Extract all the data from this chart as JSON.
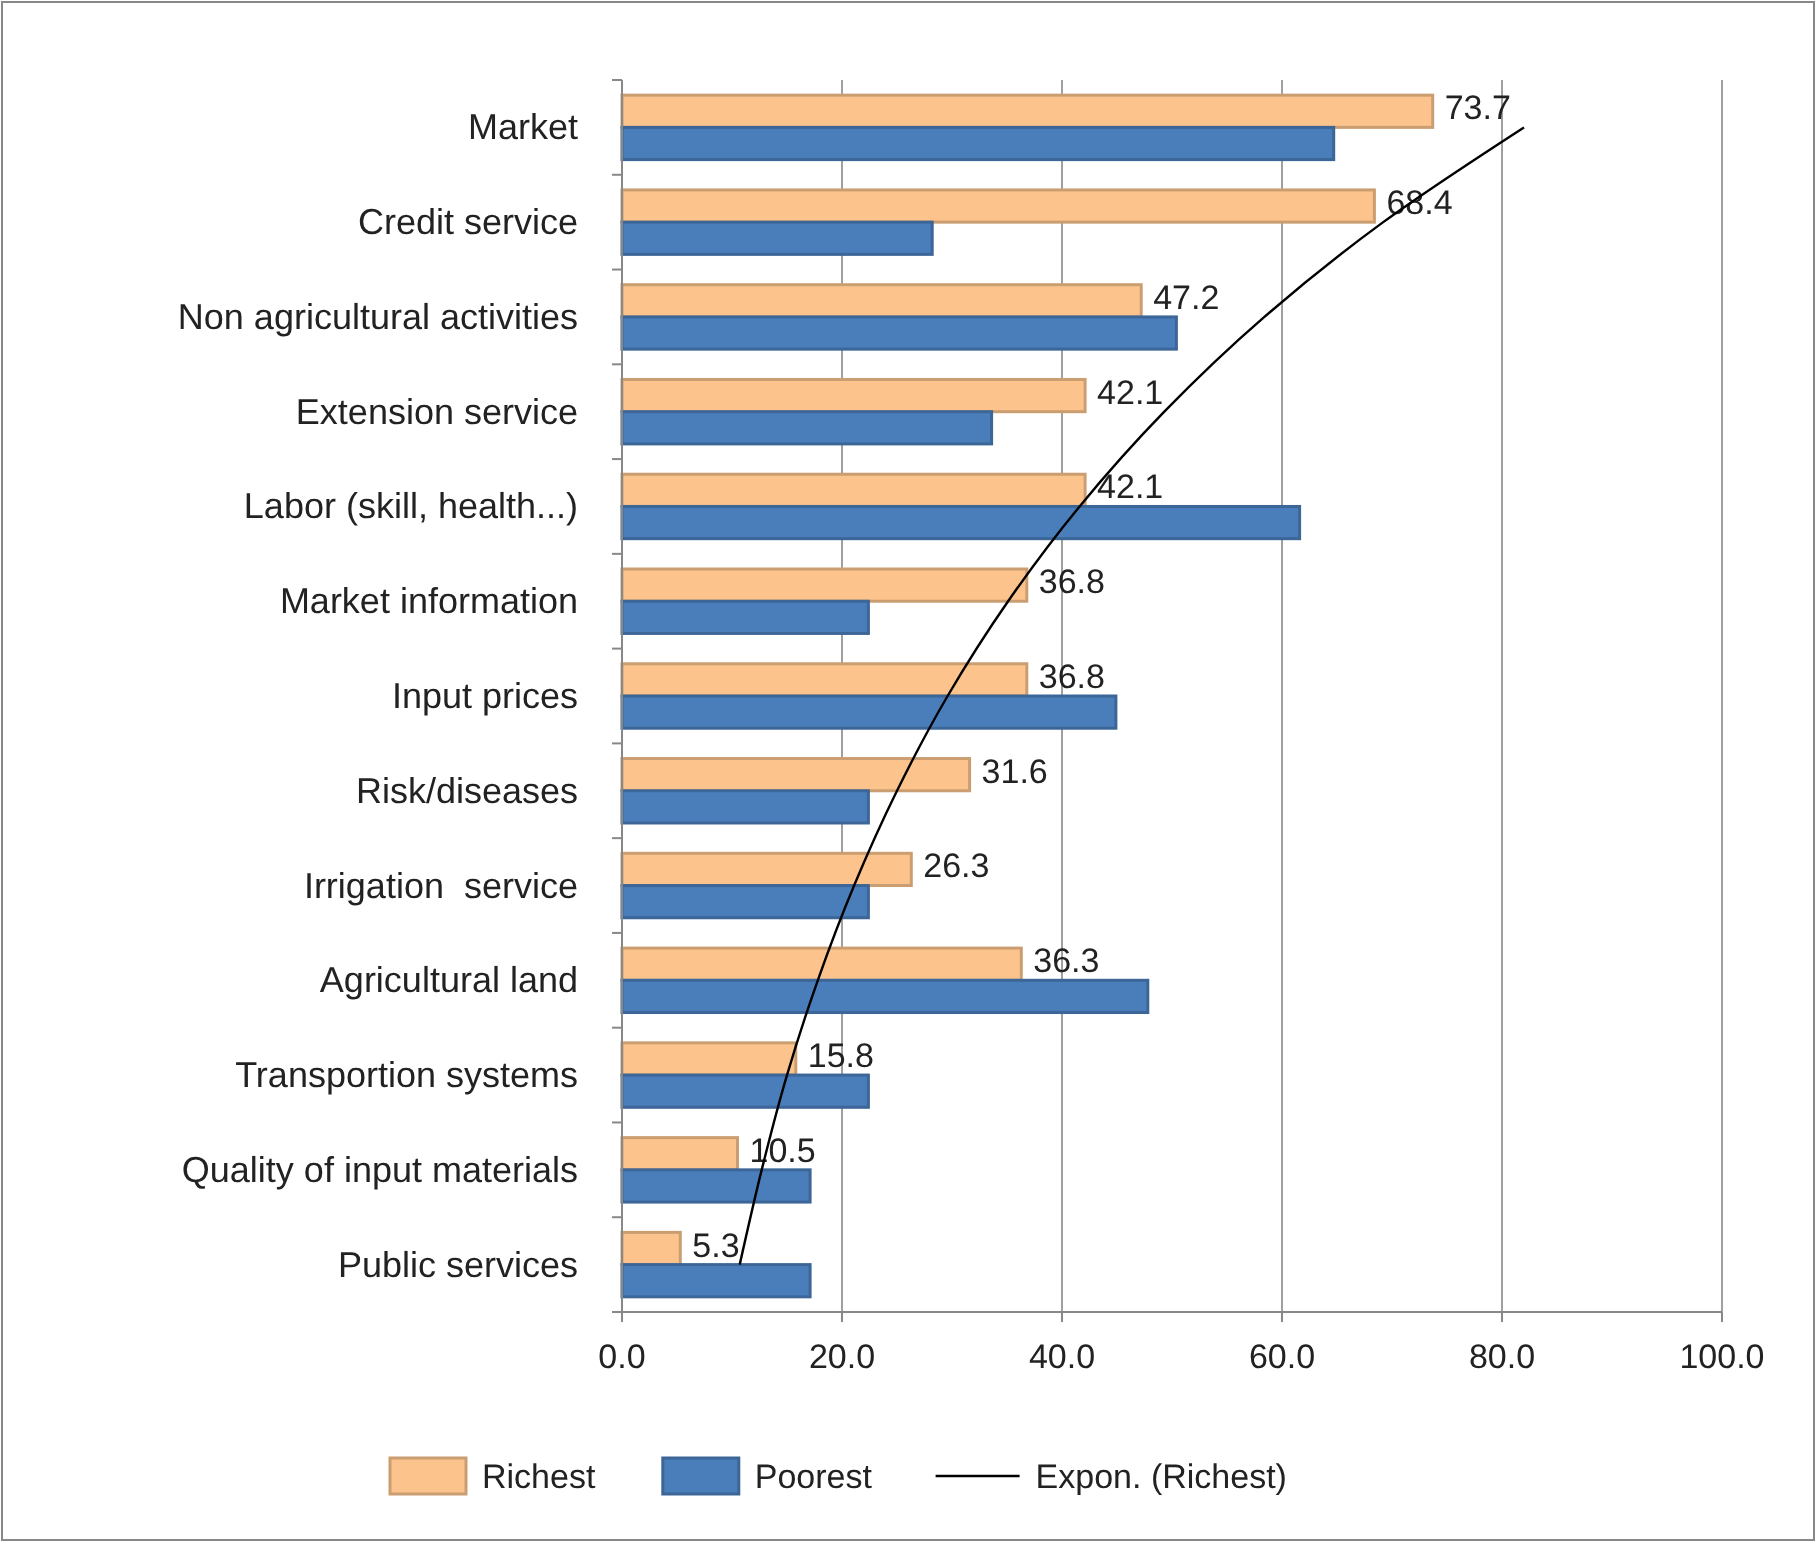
{
  "chart_data": {
    "type": "bar",
    "orientation": "horizontal",
    "categories": [
      "Market",
      "Credit service",
      "Non agricultural activities",
      "Extension service",
      "Labor (skill, health...)",
      "Market information",
      "Input prices",
      "Risk/diseases",
      "Irrigation  service",
      "Agricultural land",
      "Transportion systems",
      "Quality of input materials",
      "Public services"
    ],
    "series": [
      {
        "name": "Richest",
        "color": "#fcc48c",
        "values": [
          73.7,
          68.4,
          47.2,
          42.1,
          42.1,
          36.8,
          36.8,
          31.6,
          26.3,
          36.3,
          15.8,
          10.5,
          5.3
        ],
        "value_labels": [
          "73.7",
          "68.4",
          "47.2",
          "42.1",
          "42.1",
          "36.8",
          "36.8",
          "31.6",
          "26.3",
          "36.3",
          "15.8",
          "10.5",
          "5.3"
        ]
      },
      {
        "name": "Poorest",
        "color": "#4a7ebb",
        "values": [
          64.7,
          28.2,
          50.4,
          33.6,
          61.6,
          22.4,
          44.9,
          22.4,
          22.4,
          47.8,
          22.4,
          17.1,
          17.1
        ]
      },
      {
        "name": "Expon. (Richest)",
        "type": "line",
        "color": "#000000",
        "values": [
          82.0,
          69.2,
          58.4,
          49.3,
          41.6,
          35.1,
          29.6,
          25.0,
          21.1,
          17.8,
          15.0,
          12.7,
          10.7
        ]
      }
    ],
    "xlim": [
      0,
      100
    ],
    "xticks": [
      {
        "value": 0,
        "label": "0.0"
      },
      {
        "value": 20,
        "label": "20.0"
      },
      {
        "value": 40,
        "label": "40.0"
      },
      {
        "value": 60,
        "label": "60.0"
      },
      {
        "value": 80,
        "label": "80.0"
      },
      {
        "value": 100,
        "label": "100.0"
      }
    ],
    "grid": "x",
    "legend": "bottom"
  }
}
